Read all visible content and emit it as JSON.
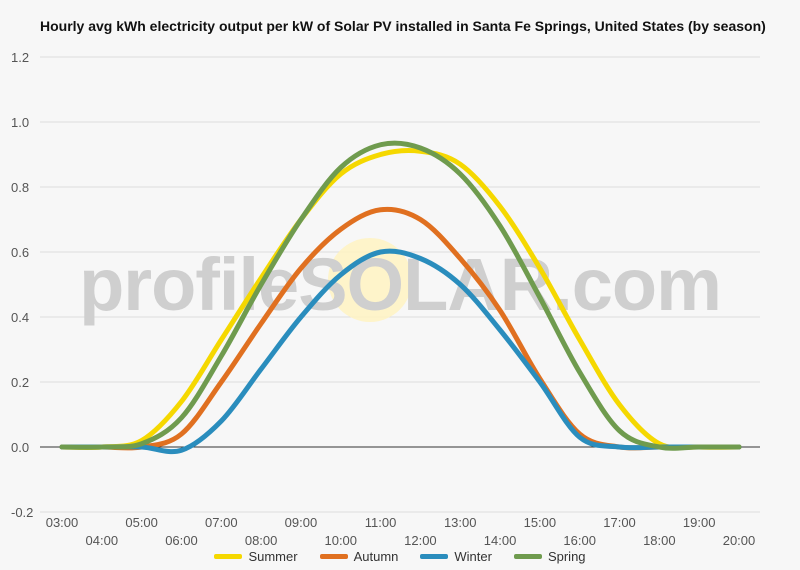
{
  "watermark": "profileSOLAR.com",
  "chart_data": {
    "type": "line",
    "title": "Hourly avg kWh electricity output per kW of Solar PV installed in Santa Fe Springs, United States (by season)",
    "xlabel": "",
    "ylabel": "",
    "ylim": [
      -0.2,
      1.2
    ],
    "yticks": [
      "1.2",
      "1.0",
      "0.8",
      "0.6",
      "0.4",
      "0.2",
      "0.0",
      "-0.2"
    ],
    "ytick_values": [
      1.2,
      1.0,
      0.8,
      0.6,
      0.4,
      0.2,
      0.0,
      -0.2
    ],
    "x": [
      "03:00",
      "04:00",
      "05:00",
      "06:00",
      "07:00",
      "08:00",
      "09:00",
      "10:00",
      "11:00",
      "12:00",
      "13:00",
      "14:00",
      "15:00",
      "16:00",
      "17:00",
      "18:00",
      "19:00",
      "20:00"
    ],
    "grid": true,
    "legend_position": "bottom",
    "series": [
      {
        "name": "Summer",
        "color": "#f5d800",
        "values": [
          0.0,
          0.0,
          0.02,
          0.14,
          0.33,
          0.52,
          0.7,
          0.84,
          0.9,
          0.91,
          0.87,
          0.74,
          0.55,
          0.33,
          0.13,
          0.01,
          0.0,
          0.0
        ]
      },
      {
        "name": "Autumn",
        "color": "#e07020",
        "values": [
          0.0,
          0.0,
          0.0,
          0.04,
          0.2,
          0.38,
          0.55,
          0.67,
          0.73,
          0.7,
          0.58,
          0.42,
          0.21,
          0.04,
          0.0,
          0.0,
          0.0,
          0.0
        ]
      },
      {
        "name": "Winter",
        "color": "#2a8dbd",
        "values": [
          0.0,
          0.0,
          0.0,
          -0.01,
          0.08,
          0.24,
          0.4,
          0.53,
          0.6,
          0.58,
          0.5,
          0.36,
          0.2,
          0.03,
          0.0,
          0.0,
          0.0,
          0.0
        ]
      },
      {
        "name": "Spring",
        "color": "#6f9b4e",
        "values": [
          0.0,
          0.0,
          0.01,
          0.09,
          0.28,
          0.5,
          0.7,
          0.86,
          0.93,
          0.92,
          0.84,
          0.68,
          0.46,
          0.23,
          0.05,
          0.0,
          0.0,
          0.0
        ]
      }
    ]
  }
}
